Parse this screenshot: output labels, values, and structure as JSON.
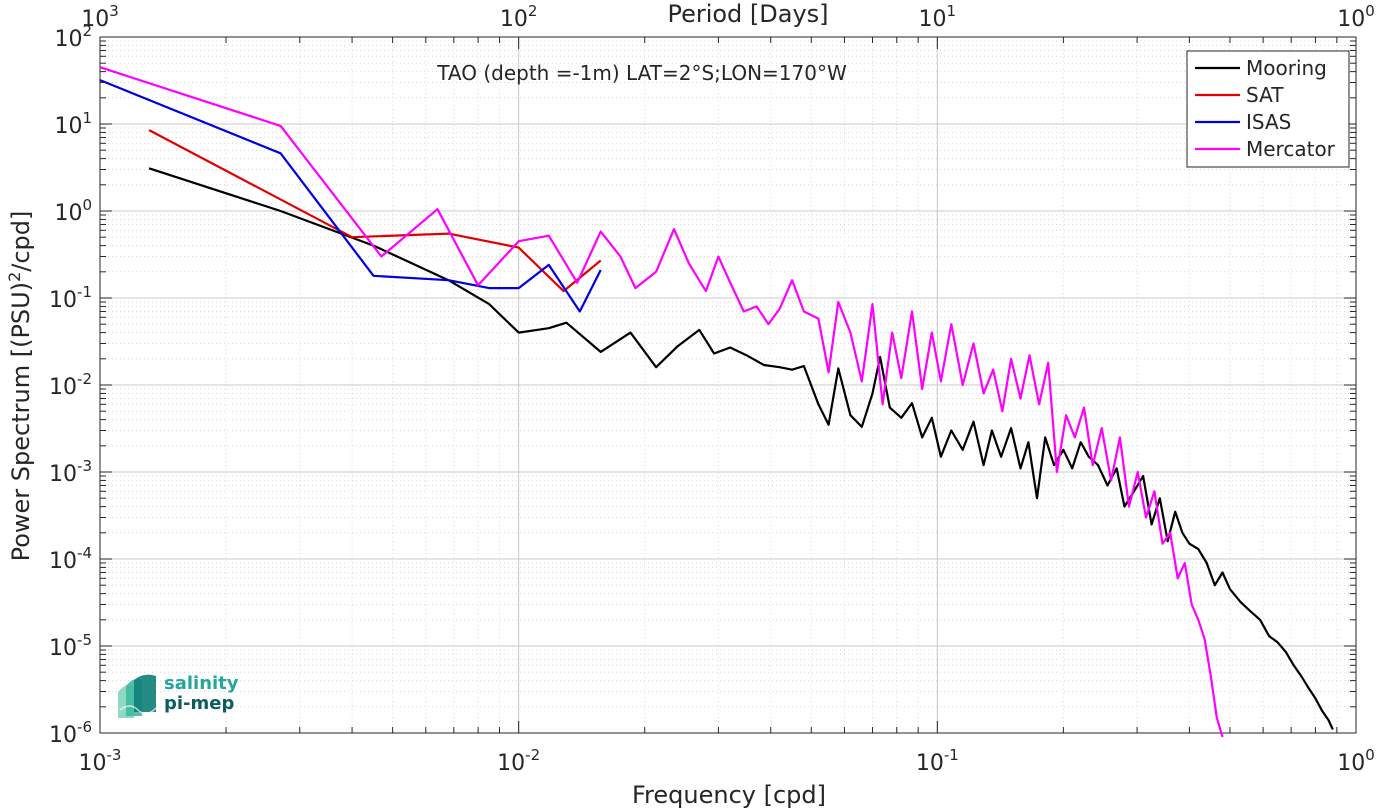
{
  "chart_data": {
    "type": "line",
    "title": "TAO (depth =-1m) LAT=2°S;LON=170°W",
    "xlabel": "Frequency [cpd]",
    "ylabel_main": "Power Spectrum [(PSU)",
    "ylabel_sup": "2",
    "ylabel_tail": "/cpd]",
    "top_xlabel": "Period [Days]",
    "xscale": "log",
    "yscale": "log",
    "xlim": [
      0.001,
      1
    ],
    "ylim": [
      1e-06,
      100
    ],
    "grid": true,
    "legend_position": "top-right",
    "x_tick_labels": [
      {
        "base": "10",
        "exp": "-3"
      },
      {
        "base": "10",
        "exp": "-2"
      },
      {
        "base": "10",
        "exp": "-1"
      },
      {
        "base": "10",
        "exp": "0"
      }
    ],
    "y_tick_labels": [
      {
        "base": "10",
        "exp": "-6"
      },
      {
        "base": "10",
        "exp": "-5"
      },
      {
        "base": "10",
        "exp": "-4"
      },
      {
        "base": "10",
        "exp": "-3"
      },
      {
        "base": "10",
        "exp": "-2"
      },
      {
        "base": "10",
        "exp": "-1"
      },
      {
        "base": "10",
        "exp": "0"
      },
      {
        "base": "10",
        "exp": "1"
      },
      {
        "base": "10",
        "exp": "2"
      }
    ],
    "top_tick_labels": [
      {
        "base": "10",
        "exp": "3"
      },
      {
        "base": "10",
        "exp": "2"
      },
      {
        "base": "10",
        "exp": "1"
      },
      {
        "base": "10",
        "exp": "0"
      }
    ],
    "series": [
      {
        "name": "Mooring",
        "color": "#000000",
        "x": [
          0.00131,
          0.0027,
          0.0045,
          0.0068,
          0.0085,
          0.01,
          0.0118,
          0.013,
          0.0157,
          0.0185,
          0.0213,
          0.024,
          0.027,
          0.0293,
          0.032,
          0.035,
          0.0385,
          0.042,
          0.045,
          0.048,
          0.052,
          0.055,
          0.058,
          0.062,
          0.066,
          0.07,
          0.073,
          0.077,
          0.082,
          0.087,
          0.092,
          0.097,
          0.102,
          0.108,
          0.115,
          0.122,
          0.129,
          0.135,
          0.142,
          0.15,
          0.158,
          0.165,
          0.173,
          0.181,
          0.19,
          0.2,
          0.21,
          0.22,
          0.23,
          0.242,
          0.255,
          0.268,
          0.28,
          0.295,
          0.31,
          0.325,
          0.34,
          0.355,
          0.37,
          0.385,
          0.4,
          0.42,
          0.44,
          0.46,
          0.48,
          0.5,
          0.53,
          0.56,
          0.59,
          0.62,
          0.65,
          0.68,
          0.71,
          0.74,
          0.77,
          0.8,
          0.83,
          0.86,
          0.88
        ],
        "values": [
          3.1,
          1.0,
          0.4,
          0.16,
          0.085,
          0.04,
          0.045,
          0.052,
          0.024,
          0.04,
          0.016,
          0.028,
          0.043,
          0.023,
          0.027,
          0.022,
          0.017,
          0.016,
          0.015,
          0.0165,
          0.006,
          0.0035,
          0.0155,
          0.0045,
          0.0033,
          0.008,
          0.021,
          0.0055,
          0.0042,
          0.0062,
          0.0025,
          0.0042,
          0.0015,
          0.003,
          0.0018,
          0.0038,
          0.0012,
          0.003,
          0.0015,
          0.0032,
          0.0011,
          0.0022,
          0.0005,
          0.0025,
          0.0012,
          0.0018,
          0.0011,
          0.0022,
          0.0015,
          0.0012,
          0.0007,
          0.0011,
          0.0004,
          0.0006,
          0.0009,
          0.00025,
          0.0005,
          0.00016,
          0.00035,
          0.0002,
          0.00015,
          0.00013,
          9e-05,
          5e-05,
          7e-05,
          4.5e-05,
          3.2e-05,
          2.5e-05,
          2e-05,
          1.3e-05,
          1.1e-05,
          8.5e-06,
          6e-06,
          4.5e-06,
          3.3e-06,
          2.5e-06,
          1.8e-06,
          1.4e-06,
          1.1e-06
        ]
      },
      {
        "name": "SAT",
        "color": "#e00000",
        "x": [
          0.00131,
          0.004,
          0.0068,
          0.01,
          0.0128,
          0.0157
        ],
        "values": [
          8.5,
          0.5,
          0.55,
          0.38,
          0.12,
          0.27
        ]
      },
      {
        "name": "ISAS",
        "color": "#0000e0",
        "x": [
          0.001,
          0.0027,
          0.0045,
          0.0068,
          0.0085,
          0.01,
          0.0118,
          0.014,
          0.0157
        ],
        "values": [
          32,
          4.6,
          0.18,
          0.16,
          0.13,
          0.13,
          0.24,
          0.07,
          0.21
        ]
      },
      {
        "name": "Mercator",
        "color": "#ff00ff",
        "x": [
          0.001,
          0.0027,
          0.0047,
          0.0064,
          0.008,
          0.01,
          0.0118,
          0.0138,
          0.0157,
          0.0175,
          0.019,
          0.0213,
          0.0235,
          0.0255,
          0.028,
          0.03,
          0.032,
          0.0345,
          0.037,
          0.0395,
          0.042,
          0.045,
          0.048,
          0.052,
          0.055,
          0.058,
          0.062,
          0.066,
          0.07,
          0.074,
          0.078,
          0.082,
          0.087,
          0.092,
          0.097,
          0.102,
          0.108,
          0.115,
          0.122,
          0.129,
          0.136,
          0.143,
          0.15,
          0.158,
          0.166,
          0.175,
          0.184,
          0.193,
          0.203,
          0.213,
          0.224,
          0.235,
          0.247,
          0.26,
          0.273,
          0.287,
          0.301,
          0.315,
          0.33,
          0.345,
          0.36,
          0.375,
          0.39,
          0.405,
          0.42,
          0.435,
          0.45,
          0.465,
          0.48
        ],
        "values": [
          45,
          9.5,
          0.3,
          1.05,
          0.14,
          0.45,
          0.52,
          0.15,
          0.58,
          0.3,
          0.13,
          0.2,
          0.62,
          0.25,
          0.12,
          0.3,
          0.15,
          0.07,
          0.08,
          0.05,
          0.075,
          0.16,
          0.07,
          0.058,
          0.014,
          0.09,
          0.04,
          0.011,
          0.085,
          0.006,
          0.04,
          0.012,
          0.07,
          0.009,
          0.04,
          0.011,
          0.05,
          0.01,
          0.03,
          0.008,
          0.015,
          0.005,
          0.02,
          0.007,
          0.022,
          0.006,
          0.018,
          0.001,
          0.0045,
          0.0025,
          0.0055,
          0.0012,
          0.0032,
          0.0008,
          0.0025,
          0.0004,
          0.001,
          0.0003,
          0.0006,
          0.00015,
          0.0002,
          6e-05,
          9e-05,
          3e-05,
          2e-05,
          1.2e-05,
          4.5e-06,
          1.5e-06,
          9e-07
        ]
      }
    ]
  },
  "logo": {
    "line1": "salinity",
    "line2": "pi-mep"
  }
}
